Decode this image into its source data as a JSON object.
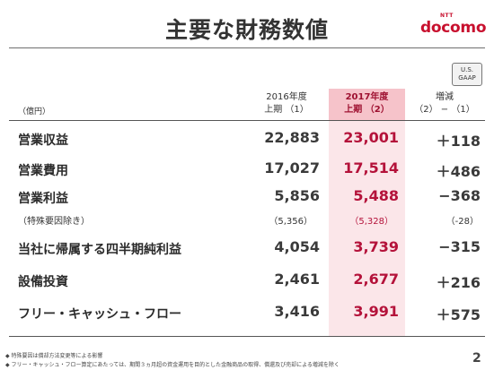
{
  "title": "主要な財務数値",
  "logo": {
    "small": "NTT",
    "word": "docomo"
  },
  "badge": {
    "line1": "U.S.",
    "line2": "GAAP"
  },
  "unit": "（億円）",
  "headers": {
    "col1": {
      "line1": "2016年度",
      "line2": "上期  （1）"
    },
    "col2": {
      "line1": "2017年度",
      "line2": "上期  （2）"
    },
    "col3": {
      "line1": "増減",
      "line2": "（2） − （1）"
    }
  },
  "rows": [
    {
      "label": "営業収益",
      "v1": "22,883",
      "v2": "23,001",
      "v3": "＋118"
    },
    {
      "label": "営業費用",
      "v1": "17,027",
      "v2": "17,514",
      "v3": "＋486"
    },
    {
      "label": "営業利益",
      "v1": "5,856",
      "v2": "5,488",
      "v3": "−368"
    },
    {
      "label": "当社に帰属する四半期純利益",
      "v1": "4,054",
      "v2": "3,739",
      "v3": "−315"
    },
    {
      "label": "設備投資",
      "v1": "2,461",
      "v2": "2,677",
      "v3": "＋216"
    },
    {
      "label": "フリー・キャッシュ・フロー",
      "v1": "3,416",
      "v2": "3,991",
      "v3": "＋575"
    }
  ],
  "subrow": {
    "label": "（特殊要因除き）",
    "v1": "（5,356）",
    "v2": "（5,328）",
    "v3": "（-28）"
  },
  "notes": [
    "◆  特殊要因は償却方法変更等による影響",
    "◆  フリー・キャッシュ・フロー算定にあたっては、期間３ヵ月超の資金運用を目的とした金融商品の取得、償還及び売却による増減を除く"
  ],
  "page_number": "2",
  "colors": {
    "accent": "#c8102e",
    "highlight_header": "#f6c3ca",
    "highlight_column": "#fbe6e9"
  }
}
